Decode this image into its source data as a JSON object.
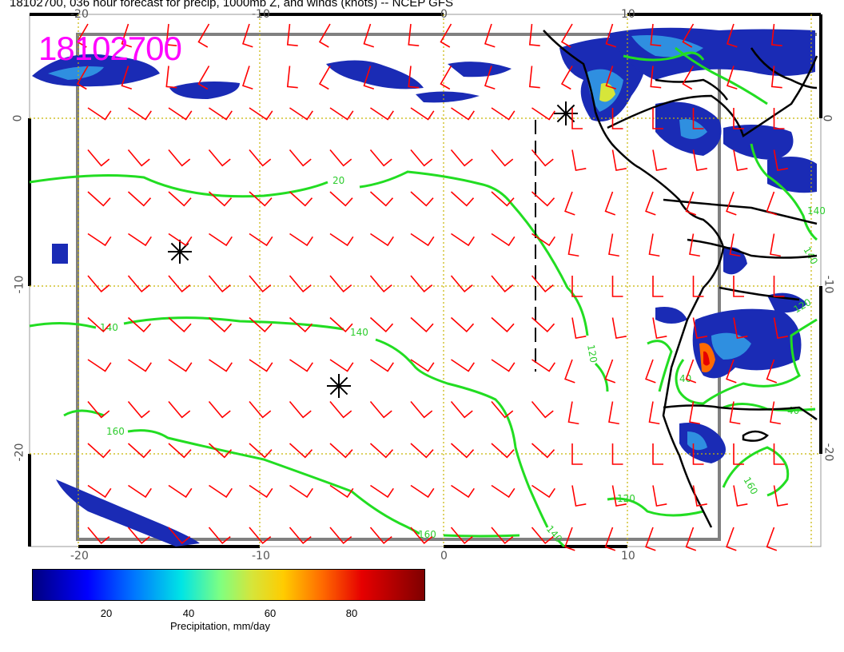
{
  "title": "18102700, 036 hour forecast for precip, 1000mb Z, and winds (knots) -- NCEP GFS",
  "stamp": "18102700",
  "axes": {
    "top_ticks": [
      "-20",
      "-10",
      "0",
      "10"
    ],
    "bottom_ticks": [
      "-20",
      "-10",
      "0",
      "10"
    ],
    "left_ticks": [
      "0",
      "-10",
      "-20"
    ],
    "right_ticks": [
      "0",
      "-10",
      "-20"
    ]
  },
  "contour_labels": [
    "20",
    "140",
    "140",
    "120",
    "160",
    "120",
    "140",
    "160",
    "140",
    "160",
    "40",
    "40",
    "140",
    "120"
  ],
  "colorbar": {
    "label": "Precipitation, mm/day",
    "ticks": [
      "20",
      "40",
      "60",
      "80"
    ],
    "colors": [
      "#00007f",
      "#0000ff",
      "#0077ff",
      "#00e5e5",
      "#80ff80",
      "#d6e53a",
      "#ffcc00",
      "#ff6a00",
      "#e60000",
      "#7f0000"
    ]
  },
  "colors": {
    "wind_barbs": "#ff0000",
    "contours": "#22dd22",
    "gridlines": "#c8b400",
    "stamp": "#ff00ff",
    "coastline": "#000000"
  },
  "markers": [
    "storm-center",
    "storm-center",
    "storm-center"
  ]
}
